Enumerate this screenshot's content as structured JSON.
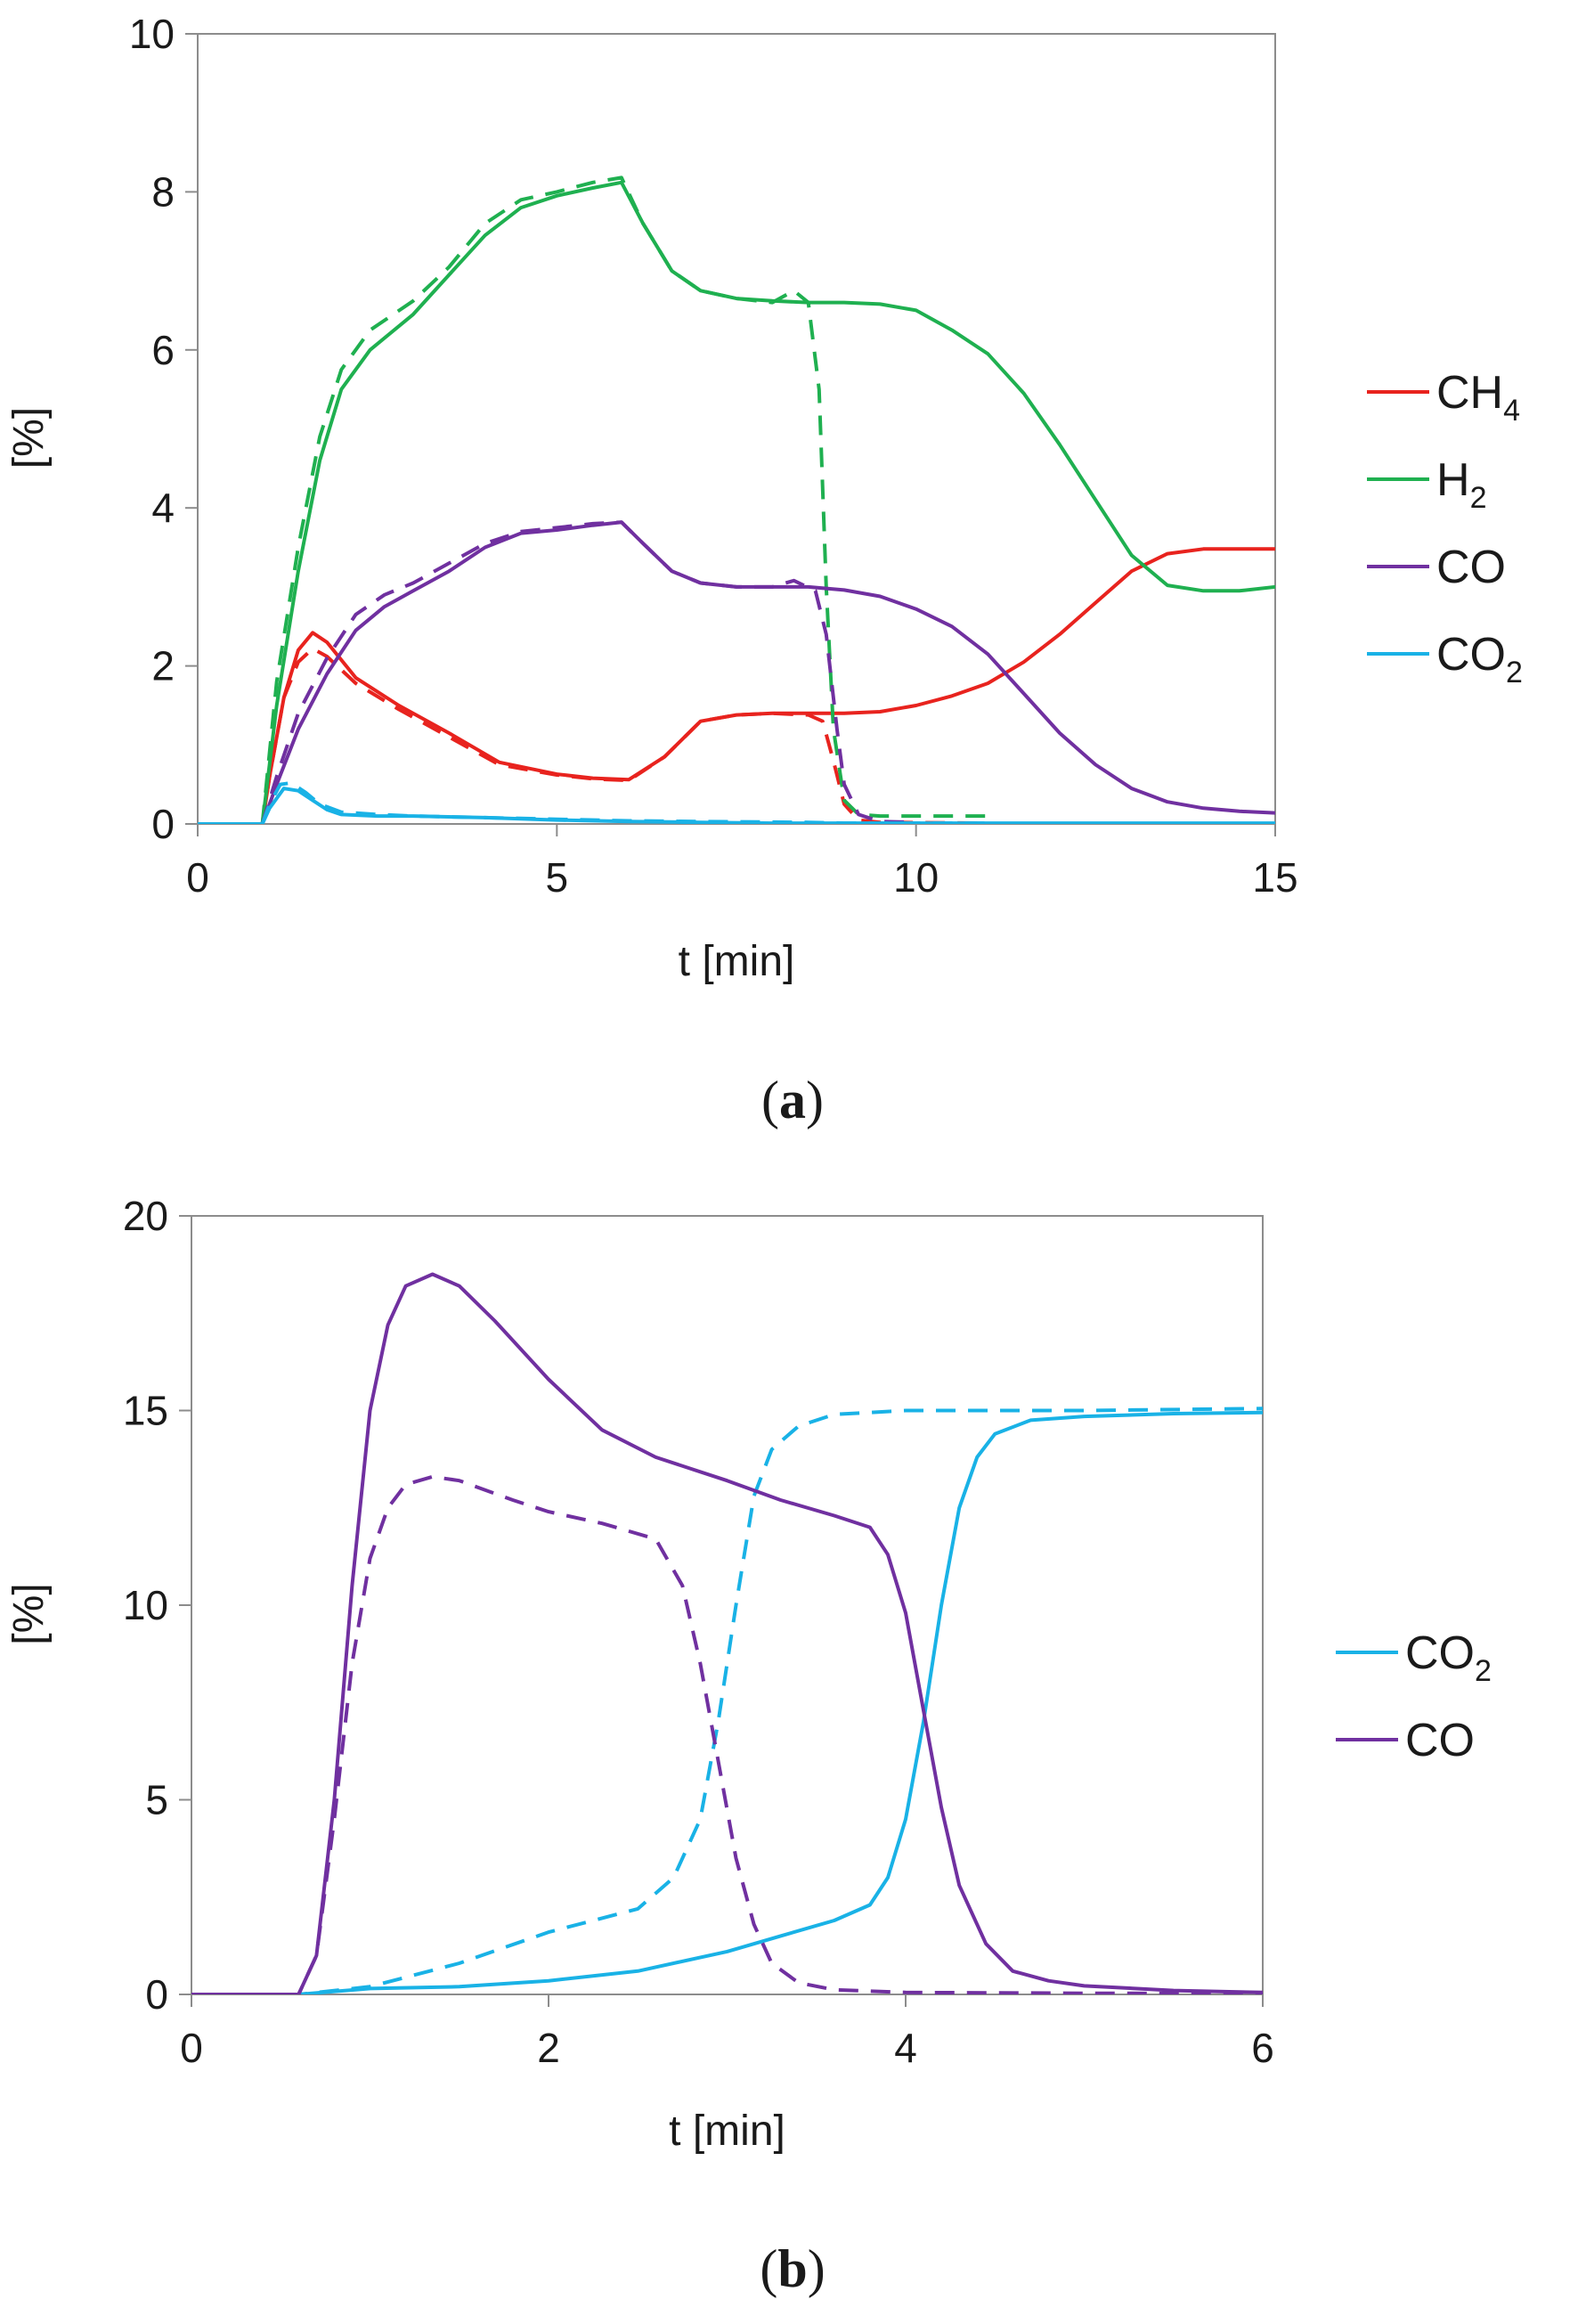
{
  "chart_data": [
    {
      "type": "line",
      "panel_label": {
        "open": "(",
        "letter": "a",
        "close": ")"
      },
      "xlabel": "t [min]",
      "ylabel": "[%]",
      "xlim": [
        0,
        15
      ],
      "ylim": [
        0,
        10
      ],
      "xticks": [
        0,
        5,
        10,
        15
      ],
      "yticks": [
        0,
        2,
        4,
        6,
        8,
        10
      ],
      "grid": false,
      "legend_position": "right",
      "legend": [
        {
          "base": "CH",
          "sub": "4",
          "color": "#e8231e"
        },
        {
          "base": "H",
          "sub": "2",
          "color": "#1fb050"
        },
        {
          "base": "CO",
          "sub": "",
          "color": "#7030a0"
        },
        {
          "base": "CO",
          "sub": "2",
          "color": "#19b2e6"
        }
      ],
      "series": [
        {
          "name": "CH4",
          "style": "solid",
          "color": "#e8231e",
          "x": [
            0,
            0.9,
            1.0,
            1.2,
            1.4,
            1.6,
            1.8,
            2.2,
            2.8,
            3.5,
            4.2,
            5.0,
            5.5,
            6.0,
            6.5,
            7.0,
            7.5,
            8.0,
            8.5,
            9.0,
            9.5,
            10.0,
            10.5,
            11.0,
            11.5,
            12.0,
            12.5,
            13.0,
            13.5,
            14.0,
            15.0
          ],
          "y": [
            0,
            0,
            0.6,
            1.6,
            2.2,
            2.42,
            2.3,
            1.85,
            1.5,
            1.15,
            0.78,
            0.63,
            0.58,
            0.56,
            0.85,
            1.3,
            1.38,
            1.4,
            1.4,
            1.4,
            1.42,
            1.5,
            1.62,
            1.78,
            2.05,
            2.4,
            2.8,
            3.2,
            3.42,
            3.48,
            3.48
          ]
        },
        {
          "name": "CH4",
          "style": "dashed",
          "color": "#e8231e",
          "x": [
            0,
            0.9,
            1.0,
            1.2,
            1.4,
            1.6,
            1.8,
            2.2,
            2.8,
            3.5,
            4.2,
            5.0,
            5.5,
            6.0,
            6.5,
            7.0,
            7.5,
            8.0,
            8.5,
            8.7,
            8.85,
            9.0,
            9.2,
            9.5,
            11.0
          ],
          "y": [
            0,
            0,
            0.6,
            1.6,
            2.05,
            2.22,
            2.12,
            1.78,
            1.45,
            1.1,
            0.75,
            0.62,
            0.57,
            0.55,
            0.85,
            1.3,
            1.38,
            1.4,
            1.38,
            1.3,
            0.8,
            0.25,
            0.05,
            0.02,
            0.01
          ]
        },
        {
          "name": "H2",
          "style": "solid",
          "color": "#1fb050",
          "x": [
            0,
            0.9,
            1.1,
            1.4,
            1.7,
            2.0,
            2.4,
            3.0,
            3.5,
            4.0,
            4.5,
            5.0,
            5.5,
            5.9,
            6.2,
            6.6,
            7.0,
            7.5,
            8.0,
            8.5,
            9.0,
            9.5,
            10.0,
            10.5,
            11.0,
            11.5,
            12.0,
            12.5,
            13.0,
            13.5,
            14.0,
            14.5,
            15.0
          ],
          "y": [
            0,
            0,
            1.5,
            3.2,
            4.6,
            5.5,
            6.0,
            6.45,
            6.95,
            7.45,
            7.8,
            7.95,
            8.05,
            8.12,
            7.6,
            7.0,
            6.75,
            6.65,
            6.62,
            6.6,
            6.6,
            6.58,
            6.5,
            6.25,
            5.95,
            5.45,
            4.8,
            4.1,
            3.4,
            3.02,
            2.95,
            2.95,
            3.0
          ]
        },
        {
          "name": "H2",
          "style": "dashed",
          "color": "#1fb050",
          "x": [
            0,
            0.9,
            1.1,
            1.4,
            1.7,
            2.0,
            2.4,
            3.0,
            3.5,
            4.0,
            4.5,
            5.0,
            5.5,
            5.9,
            6.2,
            6.6,
            7.0,
            7.5,
            8.0,
            8.3,
            8.5,
            8.65,
            8.75,
            8.85,
            9.0,
            9.2,
            9.5,
            11.0
          ],
          "y": [
            0,
            0,
            1.8,
            3.5,
            4.9,
            5.75,
            6.25,
            6.62,
            7.05,
            7.6,
            7.9,
            8.0,
            8.12,
            8.18,
            7.6,
            7.0,
            6.75,
            6.65,
            6.6,
            6.75,
            6.6,
            5.5,
            3.0,
            1.2,
            0.3,
            0.12,
            0.1,
            0.1
          ]
        },
        {
          "name": "CO",
          "style": "solid",
          "color": "#7030a0",
          "x": [
            0,
            0.9,
            1.1,
            1.4,
            1.8,
            2.2,
            2.6,
            3.0,
            3.5,
            4.0,
            4.5,
            5.0,
            5.5,
            5.9,
            6.2,
            6.6,
            7.0,
            7.5,
            8.0,
            8.5,
            9.0,
            9.5,
            10.0,
            10.5,
            11.0,
            11.5,
            12.0,
            12.5,
            13.0,
            13.5,
            14.0,
            14.5,
            15.0
          ],
          "y": [
            0,
            0,
            0.5,
            1.2,
            1.9,
            2.45,
            2.75,
            2.95,
            3.2,
            3.5,
            3.68,
            3.72,
            3.78,
            3.82,
            3.55,
            3.2,
            3.05,
            3.0,
            3.0,
            3.0,
            2.96,
            2.88,
            2.72,
            2.5,
            2.15,
            1.65,
            1.15,
            0.75,
            0.45,
            0.28,
            0.2,
            0.16,
            0.14
          ]
        },
        {
          "name": "CO",
          "style": "dashed",
          "color": "#7030a0",
          "x": [
            0,
            0.9,
            1.1,
            1.4,
            1.8,
            2.2,
            2.6,
            3.0,
            3.5,
            4.0,
            4.5,
            5.0,
            5.5,
            5.9,
            6.2,
            6.6,
            7.0,
            7.5,
            8.0,
            8.3,
            8.6,
            8.75,
            8.9,
            9.0,
            9.2,
            9.5,
            10.0
          ],
          "y": [
            0,
            0,
            0.6,
            1.4,
            2.1,
            2.65,
            2.9,
            3.05,
            3.3,
            3.55,
            3.7,
            3.75,
            3.8,
            3.82,
            3.55,
            3.2,
            3.05,
            3.0,
            3.0,
            3.08,
            2.95,
            2.4,
            1.2,
            0.5,
            0.12,
            0.03,
            0.02
          ]
        },
        {
          "name": "CO2",
          "style": "solid",
          "color": "#19b2e6",
          "x": [
            0,
            0.9,
            1.0,
            1.2,
            1.4,
            1.6,
            1.8,
            2.0,
            2.5,
            3.0,
            4.0,
            5.0,
            6.0,
            7.0,
            8.0,
            10.0,
            12.0,
            15.0
          ],
          "y": [
            0,
            0,
            0.2,
            0.45,
            0.42,
            0.3,
            0.18,
            0.12,
            0.1,
            0.1,
            0.08,
            0.05,
            0.03,
            0.02,
            0.01,
            0.01,
            0.01,
            0.01
          ]
        },
        {
          "name": "CO2",
          "style": "dashed",
          "color": "#19b2e6",
          "x": [
            0,
            0.9,
            1.0,
            1.15,
            1.3,
            1.5,
            1.7,
            2.0,
            2.5,
            3.0,
            4.0,
            5.0,
            6.0,
            7.0,
            8.5,
            9.0,
            11.0
          ],
          "y": [
            0,
            0,
            0.25,
            0.5,
            0.52,
            0.4,
            0.25,
            0.15,
            0.12,
            0.1,
            0.08,
            0.06,
            0.04,
            0.03,
            0.02,
            0.01,
            0.01
          ]
        }
      ]
    },
    {
      "type": "line",
      "panel_label": {
        "open": "(",
        "letter": "b",
        "close": ")"
      },
      "xlabel": "t [min]",
      "ylabel": "[%]",
      "xlim": [
        0,
        6
      ],
      "ylim": [
        0,
        20
      ],
      "xticks": [
        0,
        2,
        4,
        6
      ],
      "yticks": [
        0,
        5,
        10,
        15,
        20
      ],
      "grid": false,
      "legend_position": "right",
      "legend": [
        {
          "base": "CO",
          "sub": "2",
          "color": "#19b2e6"
        },
        {
          "base": "CO",
          "sub": "",
          "color": "#7030a0"
        }
      ],
      "series": [
        {
          "name": "CO2",
          "style": "solid",
          "color": "#19b2e6",
          "x": [
            0,
            0.6,
            1.0,
            1.5,
            2.0,
            2.5,
            3.0,
            3.3,
            3.6,
            3.8,
            3.9,
            4.0,
            4.1,
            4.2,
            4.3,
            4.4,
            4.5,
            4.7,
            5.0,
            5.5,
            6.0
          ],
          "y": [
            0,
            0,
            0.15,
            0.2,
            0.35,
            0.6,
            1.1,
            1.5,
            1.9,
            2.3,
            3.0,
            4.5,
            7.0,
            10.0,
            12.5,
            13.8,
            14.4,
            14.75,
            14.85,
            14.92,
            14.95
          ]
        },
        {
          "name": "CO2",
          "style": "dashed",
          "color": "#19b2e6",
          "x": [
            0,
            0.6,
            1.0,
            1.5,
            2.0,
            2.5,
            2.7,
            2.85,
            2.95,
            3.05,
            3.15,
            3.25,
            3.4,
            3.6,
            4.0,
            5.0,
            6.0
          ],
          "y": [
            0,
            0,
            0.2,
            0.8,
            1.6,
            2.2,
            3.0,
            4.5,
            7.0,
            10.0,
            12.8,
            14.0,
            14.6,
            14.9,
            15.0,
            15.0,
            15.05
          ]
        },
        {
          "name": "CO",
          "style": "solid",
          "color": "#7030a0",
          "x": [
            0,
            0.6,
            0.7,
            0.8,
            0.9,
            1.0,
            1.1,
            1.2,
            1.35,
            1.5,
            1.7,
            2.0,
            2.3,
            2.6,
            3.0,
            3.3,
            3.6,
            3.8,
            3.9,
            4.0,
            4.1,
            4.2,
            4.3,
            4.45,
            4.6,
            4.8,
            5.0,
            5.5,
            6.0
          ],
          "y": [
            0,
            0,
            1.0,
            5.0,
            10.5,
            15.0,
            17.2,
            18.2,
            18.5,
            18.2,
            17.3,
            15.8,
            14.5,
            13.8,
            13.2,
            12.7,
            12.3,
            12.0,
            11.3,
            9.8,
            7.3,
            4.8,
            2.8,
            1.3,
            0.6,
            0.35,
            0.22,
            0.1,
            0.05
          ]
        },
        {
          "name": "CO",
          "style": "dashed",
          "color": "#7030a0",
          "x": [
            0,
            0.6,
            0.7,
            0.8,
            0.9,
            1.0,
            1.1,
            1.2,
            1.35,
            1.5,
            1.8,
            2.0,
            2.3,
            2.6,
            2.75,
            2.85,
            2.95,
            3.05,
            3.15,
            3.25,
            3.4,
            3.6,
            4.0,
            5.0,
            6.0
          ],
          "y": [
            0,
            0,
            1.0,
            4.5,
            8.5,
            11.2,
            12.5,
            13.1,
            13.3,
            13.2,
            12.7,
            12.4,
            12.1,
            11.7,
            10.5,
            8.5,
            6.0,
            3.5,
            1.8,
            0.8,
            0.3,
            0.12,
            0.05,
            0.03,
            0.02
          ]
        }
      ]
    }
  ]
}
